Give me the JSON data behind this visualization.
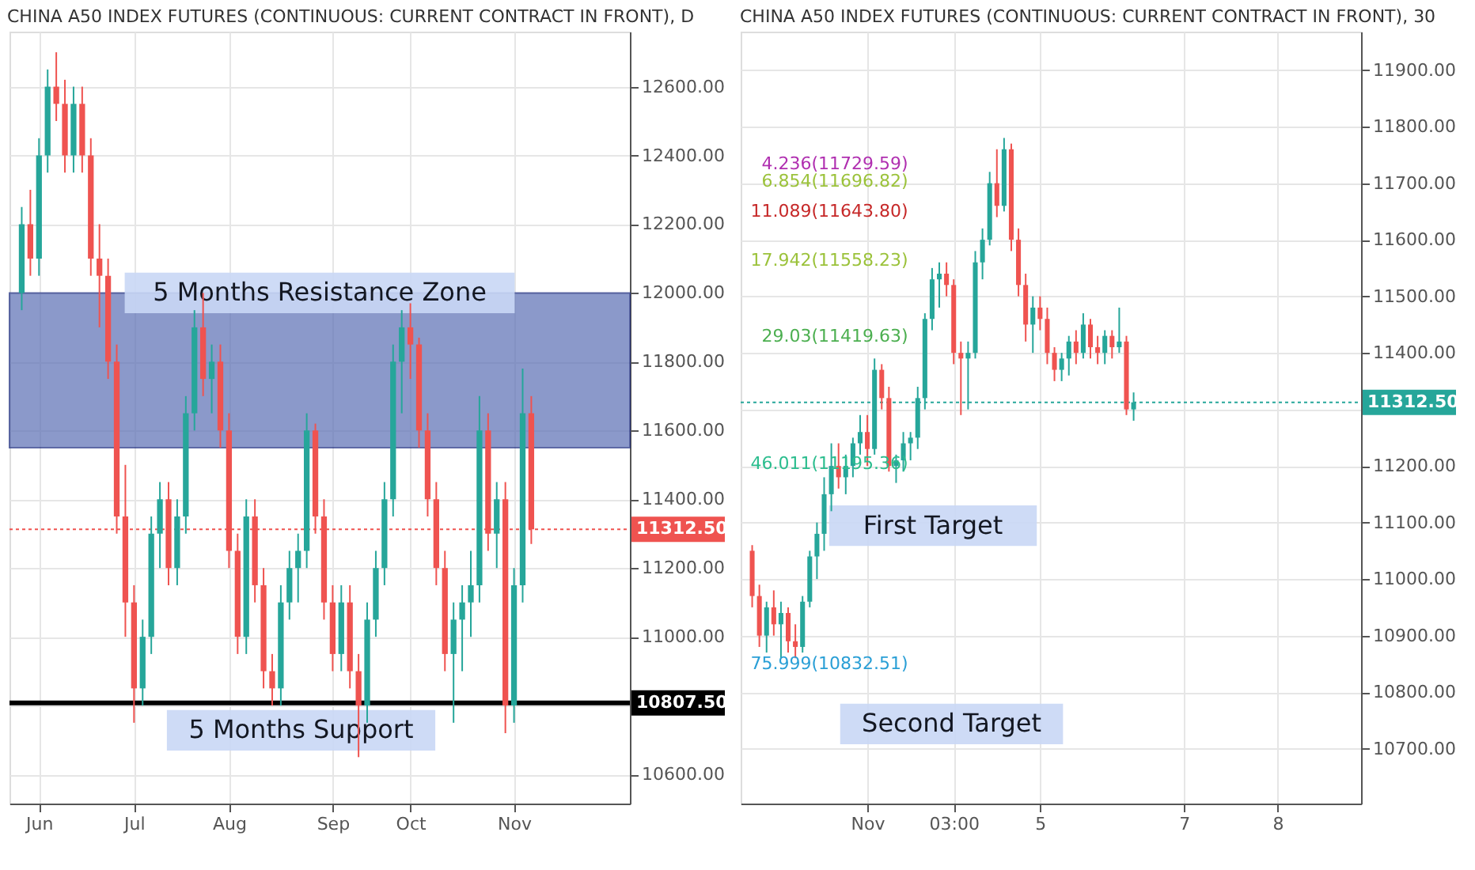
{
  "chart_data": [
    {
      "type": "candlestick",
      "title": "CHINA A50 INDEX FUTURES (CONTINUOUS: CURRENT CONTRACT IN FRONT), D",
      "categories": [
        null,
        null,
        "Jun",
        null,
        null,
        null,
        null,
        null,
        null,
        null,
        null,
        null,
        null,
        "Jul",
        null,
        null,
        null,
        null,
        null,
        null,
        null,
        null,
        null,
        null,
        "Aug",
        null,
        null,
        null,
        null,
        null,
        null,
        null,
        null,
        null,
        null,
        null,
        "Sep",
        null,
        null,
        null,
        null,
        null,
        null,
        null,
        null,
        "Oct",
        null,
        null,
        null,
        null,
        null,
        null,
        null,
        null,
        null,
        null,
        null,
        "Nov",
        null,
        null,
        null,
        null,
        null,
        null,
        null,
        null,
        null,
        null,
        null,
        null
      ],
      "ohlc": [
        [
          12000,
          12250,
          11950,
          12200
        ],
        [
          12200,
          12300,
          12050,
          12100
        ],
        [
          12100,
          12450,
          12050,
          12400
        ],
        [
          12400,
          12650,
          12350,
          12600
        ],
        [
          12600,
          12700,
          12500,
          12550
        ],
        [
          12550,
          12620,
          12350,
          12400
        ],
        [
          12400,
          12600,
          12350,
          12550
        ],
        [
          12550,
          12600,
          12350,
          12400
        ],
        [
          12400,
          12450,
          12050,
          12100
        ],
        [
          12100,
          12200,
          11900,
          12050
        ],
        [
          12050,
          12100,
          11750,
          11800
        ],
        [
          11800,
          11850,
          11300,
          11350
        ],
        [
          11350,
          11500,
          11000,
          11100
        ],
        [
          11100,
          11150,
          10750,
          10850
        ],
        [
          10850,
          11050,
          10800,
          11000
        ],
        [
          11000,
          11350,
          10950,
          11300
        ],
        [
          11300,
          11450,
          11200,
          11400
        ],
        [
          11400,
          11450,
          11150,
          11200
        ],
        [
          11200,
          11400,
          11150,
          11350
        ],
        [
          11350,
          11700,
          11300,
          11650
        ],
        [
          11650,
          11950,
          11600,
          11900
        ],
        [
          11900,
          12000,
          11700,
          11750
        ],
        [
          11750,
          11850,
          11650,
          11800
        ],
        [
          11800,
          11850,
          11550,
          11600
        ],
        [
          11600,
          11650,
          11200,
          11250
        ],
        [
          11250,
          11300,
          10950,
          11000
        ],
        [
          11000,
          11400,
          10950,
          11350
        ],
        [
          11350,
          11400,
          11100,
          11150
        ],
        [
          11150,
          11200,
          10850,
          10900
        ],
        [
          10900,
          10950,
          10800,
          10850
        ],
        [
          10850,
          11150,
          10800,
          11100
        ],
        [
          11100,
          11250,
          11050,
          11200
        ],
        [
          11200,
          11300,
          11100,
          11250
        ],
        [
          11250,
          11650,
          11200,
          11600
        ],
        [
          11600,
          11620,
          11300,
          11350
        ],
        [
          11350,
          11400,
          11050,
          11100
        ],
        [
          11100,
          11150,
          10900,
          10950
        ],
        [
          10950,
          11150,
          10900,
          11100
        ],
        [
          11100,
          11150,
          10850,
          10900
        ],
        [
          10900,
          10950,
          10650,
          10800
        ],
        [
          10800,
          11100,
          10750,
          11050
        ],
        [
          11050,
          11250,
          11000,
          11200
        ],
        [
          11200,
          11450,
          11150,
          11400
        ],
        [
          11400,
          11850,
          11350,
          11800
        ],
        [
          11800,
          11950,
          11650,
          11900
        ],
        [
          11900,
          11970,
          11750,
          11850
        ],
        [
          11850,
          11870,
          11550,
          11600
        ],
        [
          11600,
          11650,
          11350,
          11400
        ],
        [
          11400,
          11450,
          11150,
          11200
        ],
        [
          11200,
          11250,
          10900,
          10950
        ],
        [
          10950,
          11100,
          10750,
          11050
        ],
        [
          11050,
          11150,
          10900,
          11100
        ],
        [
          11100,
          11250,
          11000,
          11150
        ],
        [
          11150,
          11700,
          11100,
          11600
        ],
        [
          11600,
          11650,
          11250,
          11300
        ],
        [
          11300,
          11450,
          11200,
          11400
        ],
        [
          11400,
          11450,
          10720,
          10800
        ],
        [
          10800,
          11200,
          10750,
          11150
        ],
        [
          11150,
          11780,
          11100,
          11650
        ],
        [
          11650,
          11700,
          11270,
          11312.5
        ],
        null,
        null,
        null,
        null,
        null,
        null,
        null,
        null,
        null,
        null
      ],
      "colors": [
        "#26a69a",
        "#ef5350",
        "#26a69a",
        "#26a69a",
        "#ef5350",
        "#ef5350",
        "#26a69a",
        "#ef5350",
        "#ef5350",
        "#ef5350",
        "#ef5350",
        "#ef5350",
        "#ef5350",
        "#ef5350",
        "#26a69a",
        "#26a69a",
        "#26a69a",
        "#ef5350",
        "#26a69a",
        "#26a69a",
        "#26a69a",
        "#ef5350",
        "#26a69a",
        "#ef5350",
        "#ef5350",
        "#ef5350",
        "#26a69a",
        "#ef5350",
        "#ef5350",
        "#ef5350",
        "#26a69a",
        "#26a69a",
        "#26a69a",
        "#26a69a",
        "#ef5350",
        "#ef5350",
        "#ef5350",
        "#26a69a",
        "#ef5350",
        "#ef5350",
        "#26a69a",
        "#26a69a",
        "#26a69a",
        "#26a69a",
        "#26a69a",
        "#ef5350",
        "#ef5350",
        "#ef5350",
        "#ef5350",
        "#ef5350",
        "#26a69a",
        "#26a69a",
        "#26a69a",
        "#26a69a",
        "#ef5350",
        "#26a69a",
        "#ef5350",
        "#26a69a",
        "#26a69a",
        "#ef5350",
        null,
        null,
        null,
        null,
        null,
        null,
        null,
        null,
        null,
        null
      ],
      "ylim": [
        10515,
        12760
      ],
      "yticks": [
        {
          "value": 10600,
          "label": "10600.00"
        },
        {
          "value": 10800,
          "label": null
        },
        {
          "value": 11000,
          "label": "11000.00"
        },
        {
          "value": 11200,
          "label": "11200.00"
        },
        {
          "value": 11400,
          "label": "11400.00"
        },
        {
          "value": 11600,
          "label": "11600.00"
        },
        {
          "value": 11800,
          "label": "11800.00"
        },
        {
          "value": 12000,
          "label": "12000.00"
        },
        {
          "value": 12200,
          "label": "12200.00"
        },
        {
          "value": 12400,
          "label": "12400.00"
        },
        {
          "value": 12600,
          "label": "12600.00"
        }
      ],
      "grid": true,
      "bands": [
        {
          "axis": "y",
          "from": 11550,
          "to": 12000,
          "label": "5 Months Resistance Zone",
          "color": "#5b6fb5"
        }
      ],
      "ref_lines": [
        {
          "axis": "y",
          "value": 10807.5,
          "label": "10807.50",
          "color": "#000000",
          "line_style": "solid"
        },
        {
          "axis": "y",
          "value": 11312.5,
          "label": "11312.50",
          "color": "#ef5350",
          "line_style": "dotted"
        }
      ],
      "annotations": [
        "5 Months Support"
      ]
    },
    {
      "type": "candlestick",
      "title": "CHINA A50 INDEX FUTURES (CONTINUOUS: CURRENT CONTRACT IN FRONT), 30",
      "categories": [
        null,
        null,
        null,
        null,
        null,
        null,
        null,
        null,
        null,
        null,
        null,
        null,
        null,
        null,
        null,
        null,
        "Nov",
        null,
        null,
        null,
        null,
        null,
        null,
        null,
        null,
        null,
        null,
        null,
        "03:00",
        null,
        null,
        null,
        null,
        null,
        null,
        null,
        null,
        null,
        null,
        null,
        "5",
        null,
        null,
        null,
        null,
        null,
        null,
        null,
        null,
        null,
        null,
        null,
        null,
        null,
        null,
        null,
        null,
        null,
        null,
        null,
        "7",
        null,
        null,
        null,
        null,
        null,
        null,
        null,
        null,
        null,
        null,
        null,
        null,
        "8",
        null,
        null,
        null,
        null,
        null,
        null,
        null,
        null,
        null,
        null
      ],
      "ohlc": [
        [
          11050,
          11060,
          10950,
          10970
        ],
        [
          10970,
          10990,
          10880,
          10900
        ],
        [
          10900,
          10960,
          10870,
          10950
        ],
        [
          10950,
          10980,
          10900,
          10920
        ],
        [
          10920,
          10960,
          10860,
          10940
        ],
        [
          10940,
          10950,
          10870,
          10890
        ],
        [
          10890,
          10920,
          10860,
          10880
        ],
        [
          10880,
          10970,
          10870,
          10960
        ],
        [
          10960,
          11050,
          10950,
          11040
        ],
        [
          11040,
          11100,
          11000,
          11080
        ],
        [
          11080,
          11180,
          11050,
          11150
        ],
        [
          11150,
          11240,
          11120,
          11200
        ],
        [
          11200,
          11240,
          11160,
          11180
        ],
        [
          11180,
          11220,
          11150,
          11200
        ],
        [
          11200,
          11250,
          11180,
          11240
        ],
        [
          11240,
          11290,
          11220,
          11260
        ],
        [
          11260,
          11290,
          11200,
          11230
        ],
        [
          11230,
          11390,
          11220,
          11370
        ],
        [
          11370,
          11380,
          11300,
          11320
        ],
        [
          11320,
          11340,
          11190,
          11200
        ],
        [
          11200,
          11220,
          11170,
          11210
        ],
        [
          11210,
          11260,
          11190,
          11240
        ],
        [
          11240,
          11260,
          11210,
          11250
        ],
        [
          11250,
          11340,
          11230,
          11320
        ],
        [
          11320,
          11470,
          11300,
          11460
        ],
        [
          11460,
          11550,
          11440,
          11530
        ],
        [
          11530,
          11560,
          11480,
          11540
        ],
        [
          11540,
          11560,
          11500,
          11520
        ],
        [
          11520,
          11530,
          11380,
          11400
        ],
        [
          11400,
          11420,
          11290,
          11390
        ],
        [
          11390,
          11420,
          11300,
          11400
        ],
        [
          11400,
          11580,
          11390,
          11560
        ],
        [
          11560,
          11620,
          11530,
          11600
        ],
        [
          11600,
          11720,
          11590,
          11700
        ],
        [
          11700,
          11760,
          11640,
          11660
        ],
        [
          11660,
          11780,
          11650,
          11760
        ],
        [
          11760,
          11770,
          11580,
          11600
        ],
        [
          11600,
          11620,
          11500,
          11520
        ],
        [
          11520,
          11540,
          11420,
          11450
        ],
        [
          11450,
          11500,
          11400,
          11480
        ],
        [
          11480,
          11500,
          11440,
          11460
        ],
        [
          11460,
          11480,
          11380,
          11400
        ],
        [
          11400,
          11410,
          11350,
          11370
        ],
        [
          11370,
          11400,
          11350,
          11390
        ],
        [
          11390,
          11430,
          11360,
          11420
        ],
        [
          11420,
          11440,
          11380,
          11400
        ],
        [
          11400,
          11470,
          11390,
          11450
        ],
        [
          11450,
          11460,
          11390,
          11410
        ],
        [
          11410,
          11430,
          11380,
          11400
        ],
        [
          11400,
          11440,
          11380,
          11430
        ],
        [
          11430,
          11440,
          11390,
          11410
        ],
        [
          11410,
          11480,
          11400,
          11420
        ],
        [
          11420,
          11430,
          11290,
          11300
        ],
        [
          11300,
          11330,
          11280,
          11312.5
        ],
        null,
        null,
        null,
        null,
        null,
        null,
        null,
        null,
        null,
        null,
        null,
        null,
        null,
        null,
        null,
        null,
        null,
        null,
        null,
        null,
        null,
        null,
        null,
        null,
        null,
        null,
        null,
        null,
        null,
        null
      ],
      "colors": [
        "#ef5350",
        "#ef5350",
        "#26a69a",
        "#ef5350",
        "#26a69a",
        "#ef5350",
        "#ef5350",
        "#26a69a",
        "#26a69a",
        "#26a69a",
        "#26a69a",
        "#26a69a",
        "#ef5350",
        "#26a69a",
        "#26a69a",
        "#26a69a",
        "#ef5350",
        "#26a69a",
        "#ef5350",
        "#ef5350",
        "#26a69a",
        "#26a69a",
        "#26a69a",
        "#26a69a",
        "#26a69a",
        "#26a69a",
        "#26a69a",
        "#ef5350",
        "#ef5350",
        "#ef5350",
        "#26a69a",
        "#26a69a",
        "#26a69a",
        "#26a69a",
        "#ef5350",
        "#26a69a",
        "#ef5350",
        "#ef5350",
        "#ef5350",
        "#26a69a",
        "#ef5350",
        "#ef5350",
        "#ef5350",
        "#26a69a",
        "#26a69a",
        "#ef5350",
        "#26a69a",
        "#ef5350",
        "#ef5350",
        "#26a69a",
        "#ef5350",
        "#26a69a",
        "#ef5350",
        "#26a69a",
        null,
        null,
        null,
        null,
        null,
        null,
        null,
        null,
        null,
        null,
        null,
        null,
        null,
        null,
        null,
        null,
        null,
        null,
        null,
        null,
        null,
        null,
        null,
        null,
        null,
        null,
        null,
        null,
        null,
        null
      ],
      "ylim": [
        10603,
        11968
      ],
      "yticks": [
        {
          "value": 10700,
          "label": "10700.00"
        },
        {
          "value": 10800,
          "label": "10800.00"
        },
        {
          "value": 10900,
          "label": "10900.00"
        },
        {
          "value": 11000,
          "label": "11000.00"
        },
        {
          "value": 11100,
          "label": "11100.00"
        },
        {
          "value": 11200,
          "label": "11200.00"
        },
        {
          "value": 11300,
          "label": null
        },
        {
          "value": 11400,
          "label": "11400.00"
        },
        {
          "value": 11500,
          "label": "11500.00"
        },
        {
          "value": 11600,
          "label": "11600.00"
        },
        {
          "value": 11700,
          "label": "11700.00"
        },
        {
          "value": 11800,
          "label": "11800.00"
        },
        {
          "value": 11900,
          "label": "11900.00"
        }
      ],
      "grid": true,
      "ref_lines": [
        {
          "axis": "y",
          "value": 11312.5,
          "label": "11312.50",
          "color": "#26a69a",
          "line_style": "dotted"
        }
      ],
      "annotations": [
        "4.236(11729.59)",
        "6.854(11696.82)",
        "11.089(11643.80)",
        "17.942(11558.23)",
        "29.03(11419.63)",
        "46.011(11195.36)",
        "First Target",
        "75.999(10832.51)",
        "Second Target"
      ]
    }
  ]
}
